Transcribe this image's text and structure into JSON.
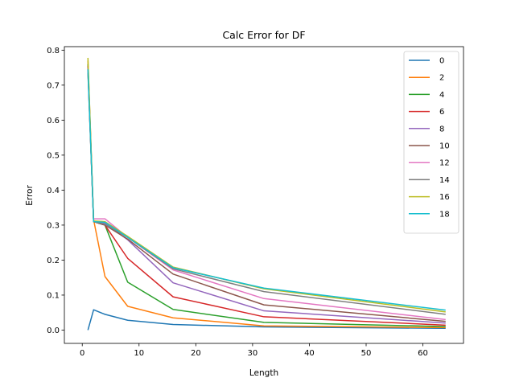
{
  "chart_data": {
    "type": "line",
    "title": "Calc Error for DF",
    "xlabel": "Length",
    "ylabel": "Error",
    "xlim": [
      -3.15,
      67.15
    ],
    "ylim": [
      -0.038,
      0.81
    ],
    "xticks": [
      0,
      10,
      20,
      30,
      40,
      50,
      60
    ],
    "yticks": [
      0.0,
      0.1,
      0.2,
      0.3,
      0.4,
      0.5,
      0.6,
      0.7,
      0.8
    ],
    "ytick_labels": [
      "0.0",
      "0.1",
      "0.2",
      "0.3",
      "0.4",
      "0.5",
      "0.6",
      "0.7",
      "0.8"
    ],
    "grid": false,
    "legend_position": "top-right",
    "x": [
      1,
      2,
      4,
      8,
      16,
      32,
      64
    ],
    "series": [
      {
        "name": "0",
        "color": "#1f77b4",
        "values": [
          0.0,
          0.058,
          0.045,
          0.028,
          0.016,
          0.009,
          0.005
        ]
      },
      {
        "name": "2",
        "color": "#ff7f0e",
        "values": [
          0.77,
          0.315,
          0.153,
          0.068,
          0.035,
          0.012,
          0.007
        ]
      },
      {
        "name": "4",
        "color": "#2ca02c",
        "values": [
          0.76,
          0.31,
          0.3,
          0.137,
          0.059,
          0.022,
          0.01
        ]
      },
      {
        "name": "6",
        "color": "#d62728",
        "values": [
          0.755,
          0.31,
          0.3,
          0.205,
          0.095,
          0.038,
          0.014
        ]
      },
      {
        "name": "8",
        "color": "#9467bd",
        "values": [
          0.75,
          0.31,
          0.305,
          0.258,
          0.135,
          0.055,
          0.02
        ]
      },
      {
        "name": "10",
        "color": "#8c564b",
        "values": [
          0.745,
          0.31,
          0.3,
          0.26,
          0.16,
          0.072,
          0.025
        ]
      },
      {
        "name": "12",
        "color": "#e377c2",
        "values": [
          0.74,
          0.318,
          0.318,
          0.265,
          0.172,
          0.09,
          0.03
        ]
      },
      {
        "name": "14",
        "color": "#7f7f7f",
        "values": [
          0.735,
          0.31,
          0.302,
          0.265,
          0.175,
          0.11,
          0.045
        ]
      },
      {
        "name": "16",
        "color": "#bcbd22",
        "values": [
          0.778,
          0.312,
          0.31,
          0.268,
          0.18,
          0.118,
          0.052
        ]
      },
      {
        "name": "18",
        "color": "#17becf",
        "values": [
          0.745,
          0.31,
          0.308,
          0.265,
          0.178,
          0.12,
          0.057
        ]
      }
    ]
  }
}
